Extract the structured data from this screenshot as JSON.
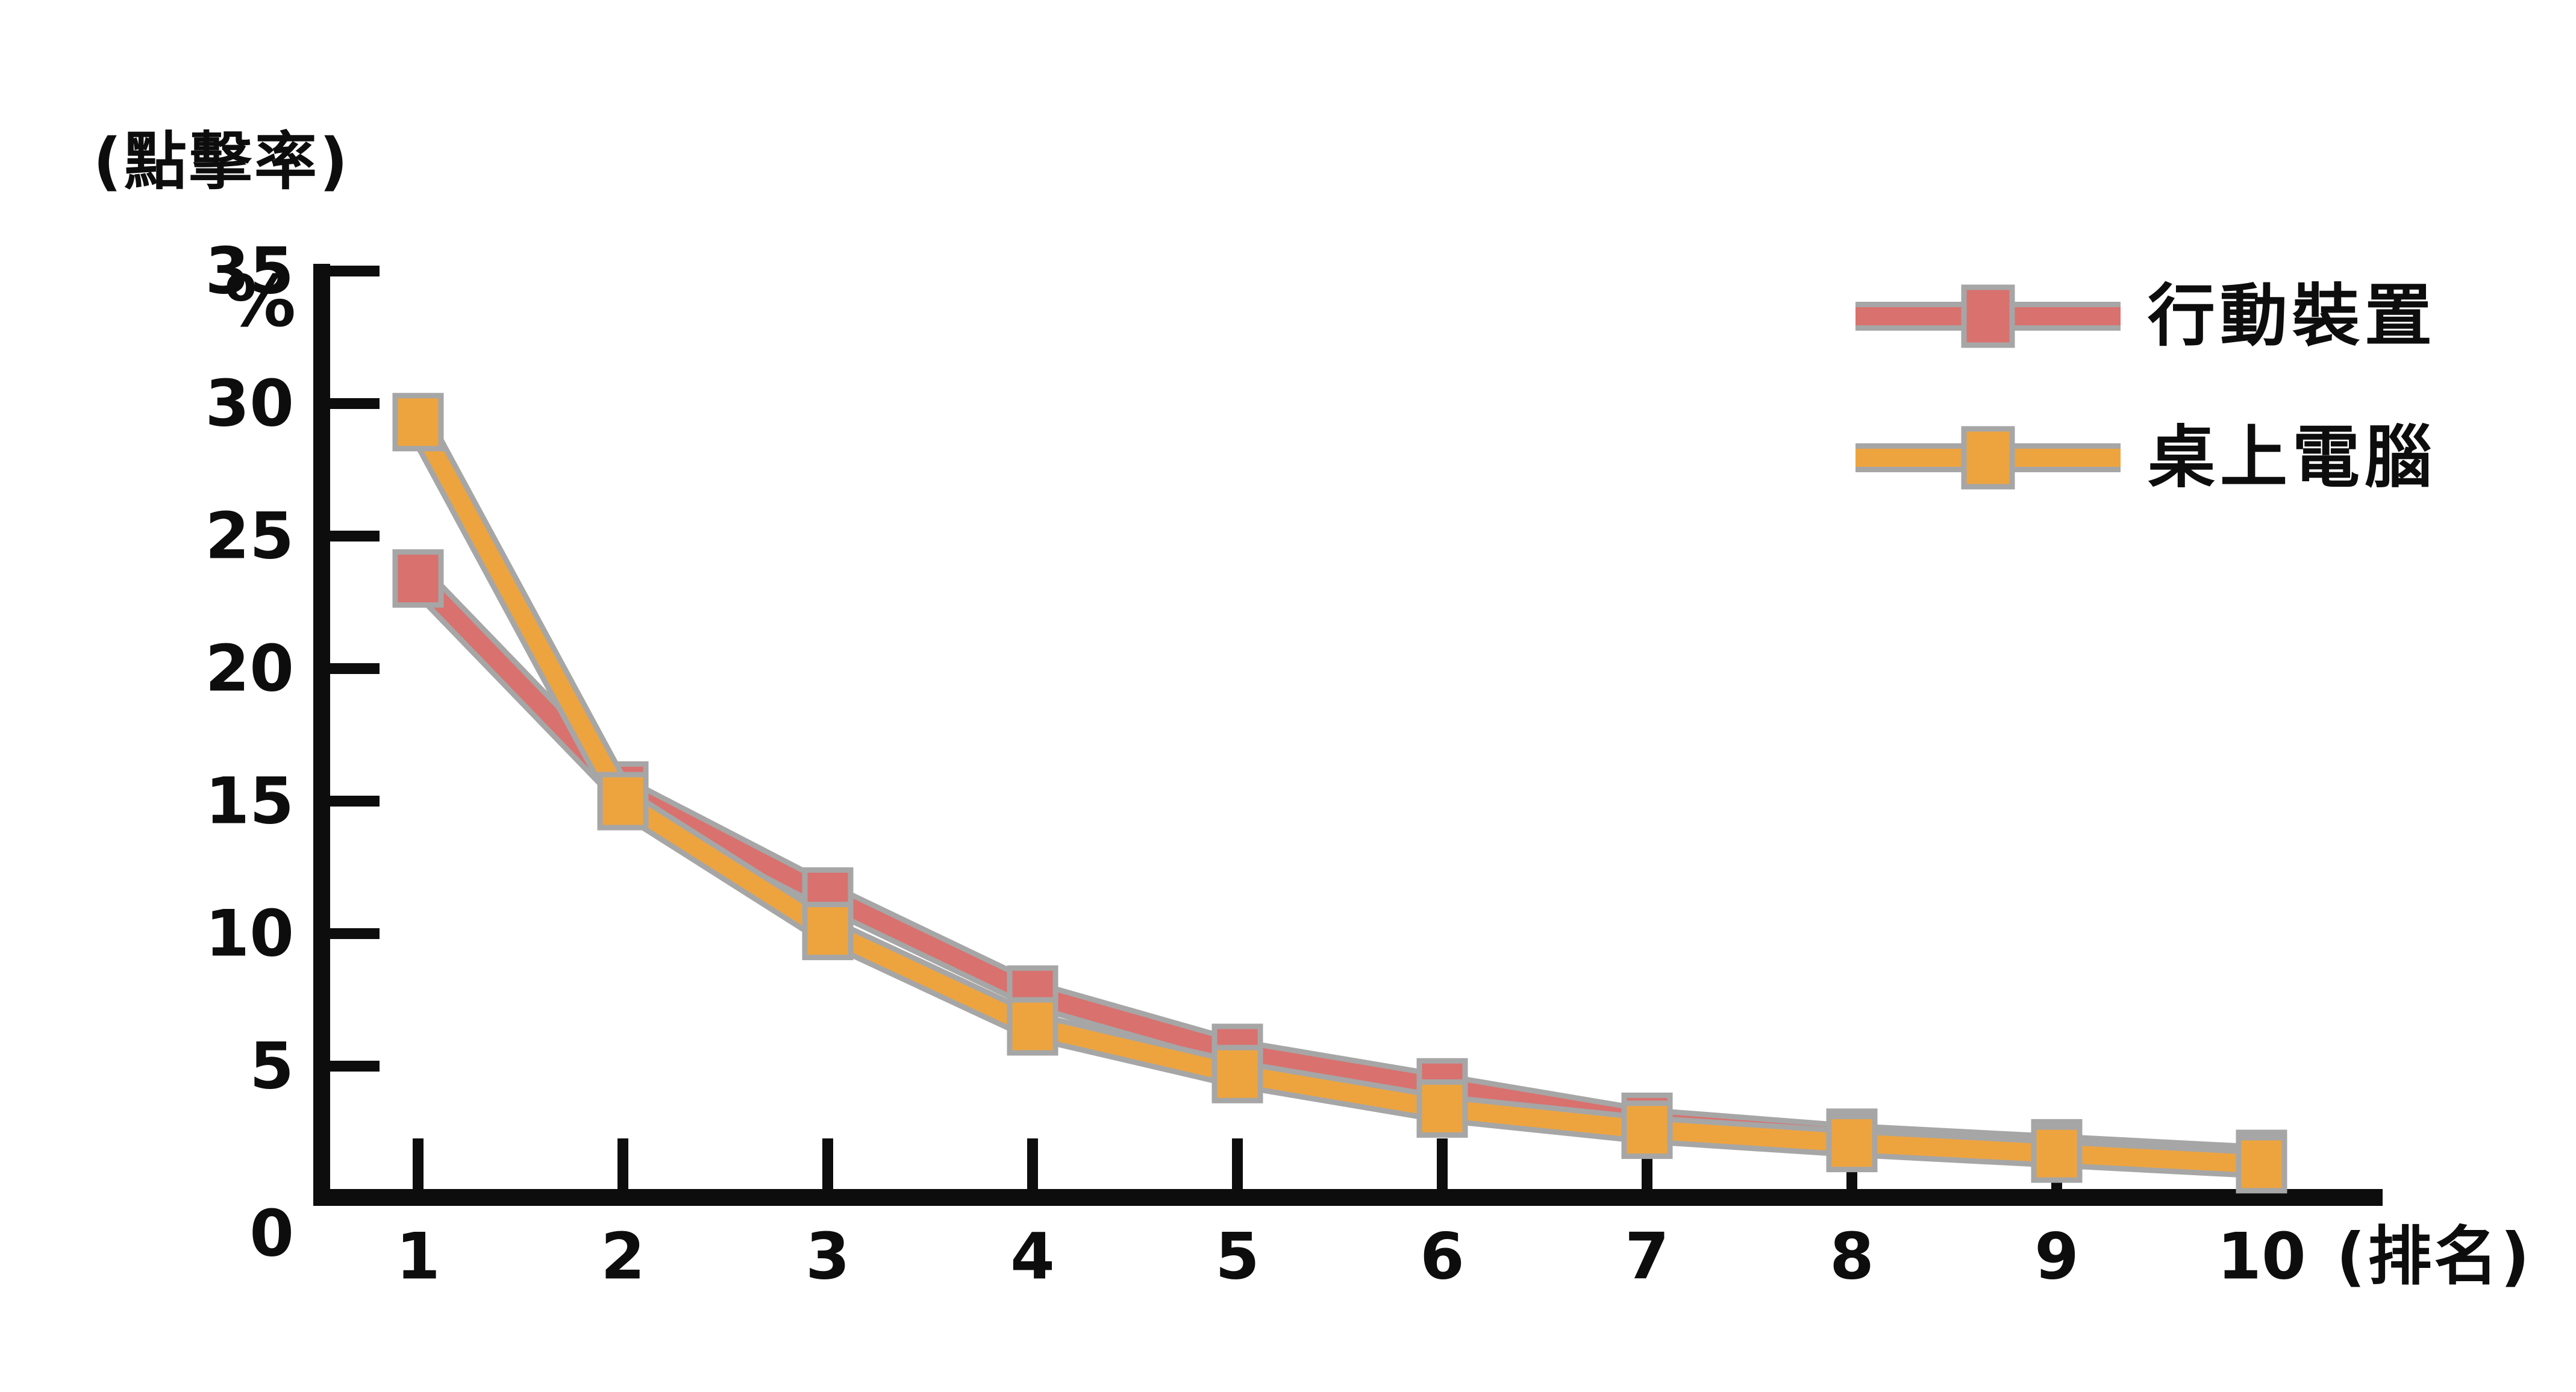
{
  "figure": {
    "background": "#ffffff",
    "description_texts": {
      "y_axis_title": "(點擊率)",
      "y_axis_unit": "%",
      "x_axis_title": "(排名)"
    }
  },
  "colors": {
    "mobile": "#d9716e",
    "desktop": "#eda43f",
    "marker_border": "#a6a6a6",
    "axis": "#0d0d0d",
    "text": "#0d0d0d",
    "background": "#ffffff"
  },
  "y_axis": {
    "ticks": [
      0,
      5,
      10,
      15,
      20,
      25,
      30,
      35
    ],
    "max": 35
  },
  "x_axis": {
    "ticks": [
      1,
      2,
      3,
      4,
      5,
      6,
      7,
      8,
      9,
      10
    ]
  },
  "legend": {
    "position": "top-right",
    "items": [
      {
        "id": "mobile",
        "label": "行動裝置",
        "color_key": "mobile",
        "marker": "square"
      },
      {
        "id": "desktop",
        "label": "桌上電腦",
        "color_key": "desktop",
        "marker": "square"
      }
    ]
  },
  "chart_data": {
    "type": "line",
    "title": "",
    "xlabel": "(排名)",
    "ylabel": "(點擊率) %",
    "x": [
      1,
      2,
      3,
      4,
      5,
      6,
      7,
      8,
      9,
      10
    ],
    "xlim": [
      1,
      10
    ],
    "ylim": [
      0,
      35
    ],
    "y_tick_step": 5,
    "grid": false,
    "legend_position": "top-right",
    "marker": "square",
    "series": [
      {
        "id": "mobile",
        "name": "行動裝置",
        "color_key": "mobile",
        "values": [
          23.4,
          15.4,
          11.4,
          7.7,
          5.5,
          4.2,
          2.9,
          2.3,
          1.9,
          1.5
        ]
      },
      {
        "id": "desktop",
        "name": "桌上電腦",
        "color_key": "desktop",
        "values": [
          29.3,
          15.0,
          10.1,
          6.5,
          4.7,
          3.4,
          2.6,
          2.1,
          1.7,
          1.3
        ]
      }
    ]
  }
}
